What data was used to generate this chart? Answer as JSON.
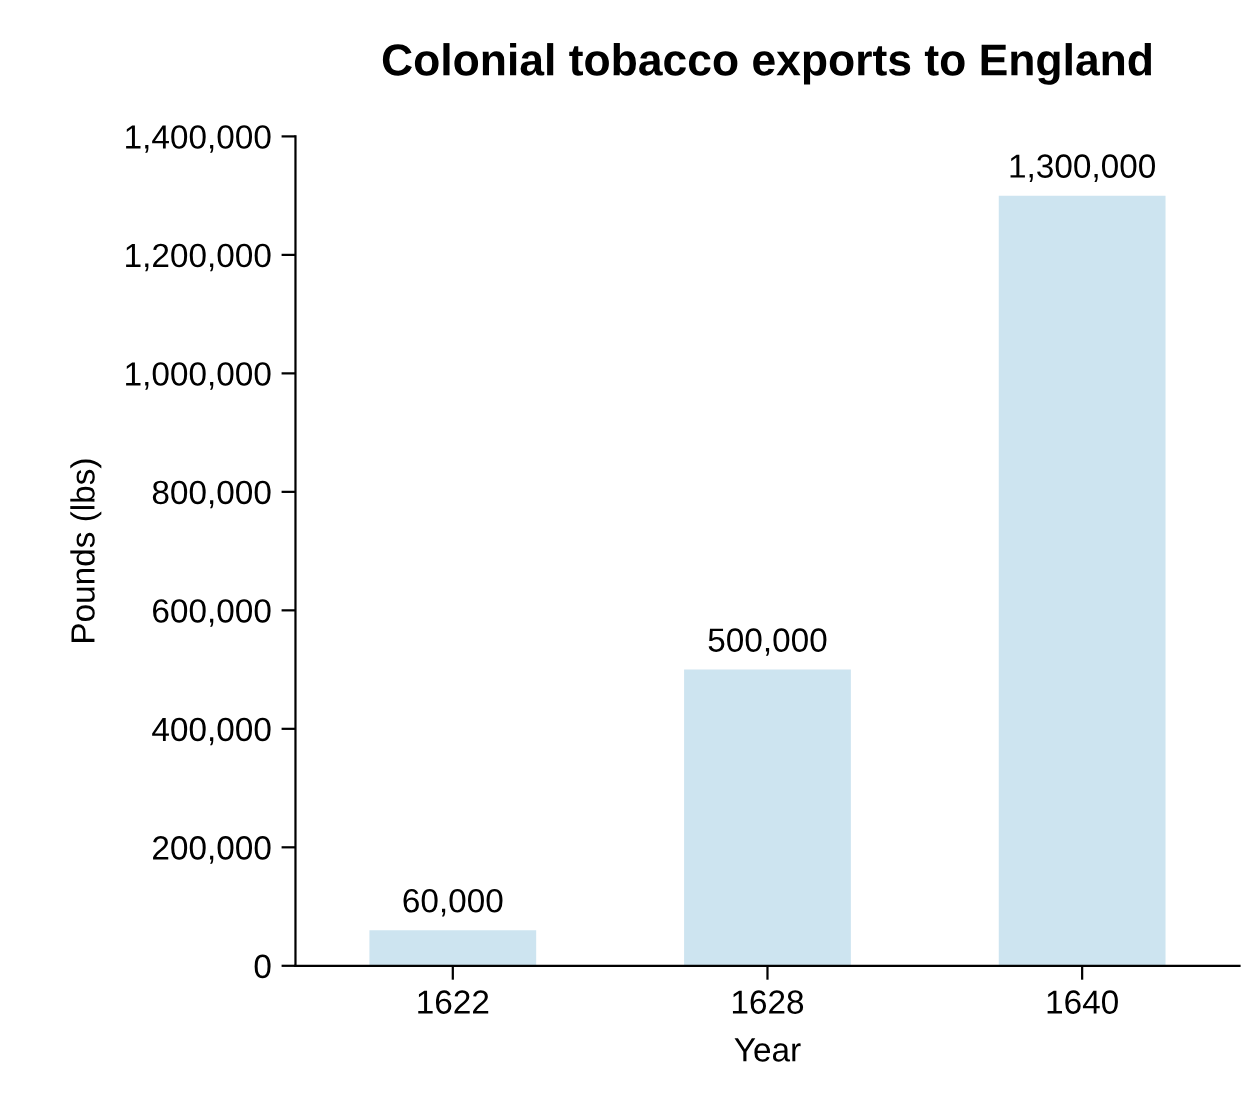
{
  "chart_data": {
    "type": "bar",
    "title": "Colonial tobacco exports to England",
    "xlabel": "Year",
    "ylabel": "Pounds (lbs)",
    "categories": [
      "1622",
      "1628",
      "1640"
    ],
    "values": [
      60000,
      500000,
      1300000
    ],
    "value_labels": [
      "60,000",
      "500,000",
      "1,300,000"
    ],
    "color": "#cde4f0",
    "ylim": [
      0,
      1400000
    ],
    "yticks": [
      {
        "value": 0,
        "label": "0"
      },
      {
        "value": 200000,
        "label": "200,000"
      },
      {
        "value": 400000,
        "label": "400,000"
      },
      {
        "value": 600000,
        "label": "600,000"
      },
      {
        "value": 800000,
        "label": "800,000"
      },
      {
        "value": 1000000,
        "label": "1,000,000"
      },
      {
        "value": 1200000,
        "label": "1,200,000"
      },
      {
        "value": 1400000,
        "label": "1,400,000"
      }
    ],
    "grid": false,
    "legend": false
  }
}
